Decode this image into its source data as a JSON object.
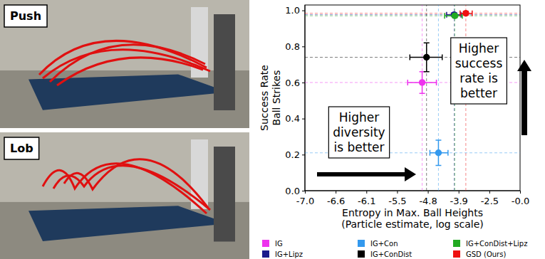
{
  "panels": [
    {
      "label": "Push"
    },
    {
      "label": "Lob"
    }
  ],
  "chart_data": {
    "type": "scatter",
    "xlabel": [
      "Entropy in Max. Ball Heights",
      "(Particle estimate, log scale)"
    ],
    "ylabel": [
      "Success Rate",
      "Ball Strikes"
    ],
    "xlim": [
      -7.0,
      0.0
    ],
    "xticks": [
      {
        "value": -7.0,
        "label": "-7.0"
      },
      -6.6,
      -6.1,
      -5.5,
      -4.8,
      -3.9,
      -2.5,
      {
        "value": 0.0,
        "label": "-0.0"
      }
    ],
    "ylim": [
      0,
      1.03
    ],
    "yticks": [
      {
        "value": 0,
        "label": "0.0"
      },
      0.2,
      0.4,
      0.6,
      0.8,
      {
        "value": 1.0,
        "label": "1.0"
      }
    ],
    "grid": false,
    "legend": "bottom",
    "marker": "circle",
    "series": [
      {
        "name": "IG",
        "color": "#ee33ee",
        "x": [
          -4.93
        ],
        "values": [
          0.6
        ],
        "x_err": [
          [
            0.33,
            0.38
          ]
        ],
        "y_err": [
          0.06
        ]
      },
      {
        "name": "IG+Lipz",
        "color": "#1a1a8c",
        "x": [
          -4.03
        ],
        "values": [
          0.976
        ],
        "x_err": [
          [
            0.22,
            0.24
          ]
        ],
        "y_err": [
          0.01
        ]
      },
      {
        "name": "IG+Con",
        "color": "#3399ee",
        "x": [
          -4.49
        ],
        "values": [
          0.21
        ],
        "x_err": [
          [
            0.25,
            0.28
          ]
        ],
        "y_err": [
          0.07
        ]
      },
      {
        "name": "IG+ConDist",
        "color": "#000000",
        "x": [
          -4.83
        ],
        "values": [
          0.74
        ],
        "x_err": [
          [
            0.38,
            0.45
          ]
        ],
        "y_err": [
          0.08
        ]
      },
      {
        "name": "IG+ConDist+Lipz",
        "color": "#22aa22",
        "x": [
          -4.01
        ],
        "values": [
          0.97
        ],
        "x_err": [
          [
            0.3,
            0.28
          ]
        ],
        "y_err": [
          0.01
        ]
      },
      {
        "name": "GSD (Ours)",
        "color": "#ee1111",
        "x": [
          -3.57
        ],
        "values": [
          0.984
        ],
        "x_err": [
          [
            0.26,
            0.29
          ]
        ],
        "y_err": [
          0.01
        ]
      }
    ],
    "annotations": [
      {
        "lines": [
          "Higher",
          "diversity",
          "is better"
        ]
      },
      {
        "lines": [
          "Higher",
          "success",
          "rate is",
          "better"
        ]
      }
    ]
  }
}
